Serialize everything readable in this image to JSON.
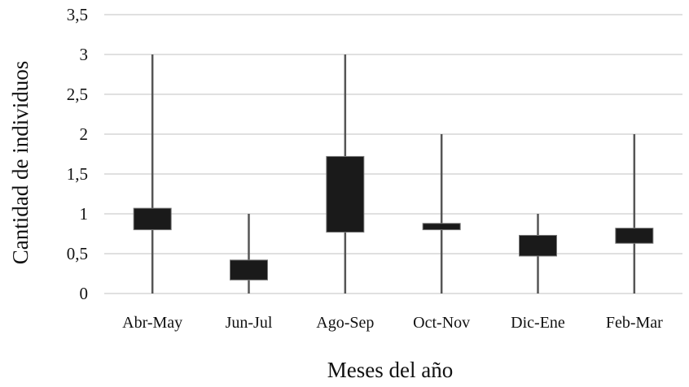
{
  "chart_data": {
    "type": "box",
    "xlabel": "Meses del año",
    "ylabel": "Cantidad de individuos",
    "categories": [
      "Abr-May",
      "Jun-Jul",
      "Ago-Sep",
      "Oct-Nov",
      "Dic-Ene",
      "Feb-Mar"
    ],
    "boxes": [
      {
        "min": 0,
        "q1": 0.8,
        "q3": 1.07,
        "max": 3
      },
      {
        "min": 0,
        "q1": 0.17,
        "q3": 0.42,
        "max": 1
      },
      {
        "min": 0,
        "q1": 0.77,
        "q3": 1.72,
        "max": 3
      },
      {
        "min": 0,
        "q1": 0.8,
        "q3": 0.88,
        "max": 2
      },
      {
        "min": 0,
        "q1": 0.47,
        "q3": 0.73,
        "max": 1
      },
      {
        "min": 0,
        "q1": 0.63,
        "q3": 0.82,
        "max": 2
      }
    ],
    "yticks": [
      "0",
      "0,5",
      "1",
      "1,5",
      "2",
      "2,5",
      "3",
      "3,5"
    ],
    "ylim": [
      0,
      3.5
    ],
    "grid": true,
    "colors": {
      "box": "#1a1a1a",
      "whisker": "#555555",
      "grid": "#d6d6d6"
    }
  }
}
